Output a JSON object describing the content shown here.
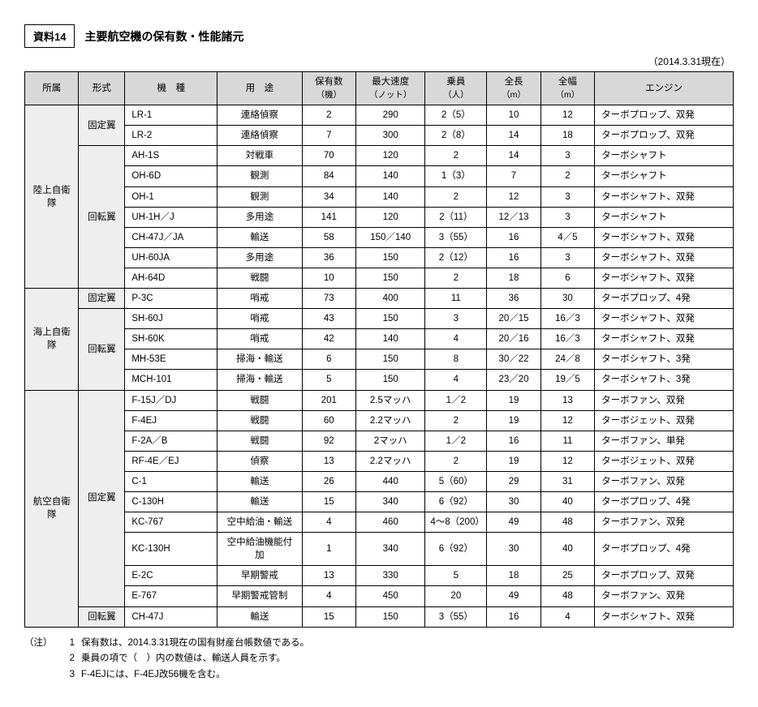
{
  "header": {
    "badge": "資料14",
    "title": "主要航空機の保有数・性能諸元",
    "asof": "（2014.3.31現在）"
  },
  "columns": {
    "org": "所属",
    "type": "形式",
    "model": "機　種",
    "use": "用　途",
    "count": "保有数",
    "count_sub": "（機）",
    "speed": "最大速度",
    "speed_sub": "（ノット）",
    "crew": "乗員",
    "crew_sub": "（人）",
    "length": "全長",
    "length_sub": "（m）",
    "width": "全幅",
    "width_sub": "（m）",
    "engine": "エンジン"
  },
  "orgs": {
    "ground": "陸上自衛隊",
    "sea": "海上自衛隊",
    "air": "航空自衛隊"
  },
  "types": {
    "fixed": "固定翼",
    "rotor": "回転翼"
  },
  "rows": {
    "r1": {
      "model": "LR-1",
      "use": "連絡偵察",
      "count": "2",
      "speed": "290",
      "crew": "2（5）",
      "len": "10",
      "wid": "12",
      "eng": "ターボプロップ、双発"
    },
    "r2": {
      "model": "LR-2",
      "use": "連絡偵察",
      "count": "7",
      "speed": "300",
      "crew": "2（8）",
      "len": "14",
      "wid": "18",
      "eng": "ターボプロップ、双発"
    },
    "r3": {
      "model": "AH-1S",
      "use": "対戦車",
      "count": "70",
      "speed": "120",
      "crew": "2",
      "len": "14",
      "wid": "3",
      "eng": "ターボシャフト"
    },
    "r4": {
      "model": "OH-6D",
      "use": "観測",
      "count": "84",
      "speed": "140",
      "crew": "1（3）",
      "len": "7",
      "wid": "2",
      "eng": "ターボシャフト"
    },
    "r5": {
      "model": "OH-1",
      "use": "観測",
      "count": "34",
      "speed": "140",
      "crew": "2",
      "len": "12",
      "wid": "3",
      "eng": "ターボシャフト、双発"
    },
    "r6": {
      "model": "UH-1H／J",
      "use": "多用途",
      "count": "141",
      "speed": "120",
      "crew": "2（11）",
      "len": "12／13",
      "wid": "3",
      "eng": "ターボシャフト"
    },
    "r7": {
      "model": "CH-47J／JA",
      "use": "輸送",
      "count": "58",
      "speed": "150／140",
      "crew": "3（55）",
      "len": "16",
      "wid": "4／5",
      "eng": "ターボシャフト、双発"
    },
    "r8": {
      "model": "UH-60JA",
      "use": "多用途",
      "count": "36",
      "speed": "150",
      "crew": "2（12）",
      "len": "16",
      "wid": "3",
      "eng": "ターボシャフト、双発"
    },
    "r9": {
      "model": "AH-64D",
      "use": "戦闘",
      "count": "10",
      "speed": "150",
      "crew": "2",
      "len": "18",
      "wid": "6",
      "eng": "ターボシャフト、双発"
    },
    "r10": {
      "model": "P-3C",
      "use": "哨戒",
      "count": "73",
      "speed": "400",
      "crew": "11",
      "len": "36",
      "wid": "30",
      "eng": "ターボプロップ、4発"
    },
    "r11": {
      "model": "SH-60J",
      "use": "哨戒",
      "count": "43",
      "speed": "150",
      "crew": "3",
      "len": "20／15",
      "wid": "16／3",
      "eng": "ターボシャフト、双発"
    },
    "r12": {
      "model": "SH-60K",
      "use": "哨戒",
      "count": "42",
      "speed": "140",
      "crew": "4",
      "len": "20／16",
      "wid": "16／3",
      "eng": "ターボシャフト、双発"
    },
    "r13": {
      "model": "MH-53E",
      "use": "掃海・輸送",
      "count": "6",
      "speed": "150",
      "crew": "8",
      "len": "30／22",
      "wid": "24／8",
      "eng": "ターボシャフト、3発"
    },
    "r14": {
      "model": "MCH-101",
      "use": "掃海・輸送",
      "count": "5",
      "speed": "150",
      "crew": "4",
      "len": "23／20",
      "wid": "19／5",
      "eng": "ターボシャフト、3発"
    },
    "r15": {
      "model": "F-15J／DJ",
      "use": "戦闘",
      "count": "201",
      "speed": "2.5マッハ",
      "crew": "1／2",
      "len": "19",
      "wid": "13",
      "eng": "ターボファン、双発"
    },
    "r16": {
      "model": "F-4EJ",
      "use": "戦闘",
      "count": "60",
      "speed": "2.2マッハ",
      "crew": "2",
      "len": "19",
      "wid": "12",
      "eng": "ターボジェット、双発"
    },
    "r17": {
      "model": "F-2A／B",
      "use": "戦闘",
      "count": "92",
      "speed": "2マッハ",
      "crew": "1／2",
      "len": "16",
      "wid": "11",
      "eng": "ターボファン、単発"
    },
    "r18": {
      "model": "RF-4E／EJ",
      "use": "偵察",
      "count": "13",
      "speed": "2.2マッハ",
      "crew": "2",
      "len": "19",
      "wid": "12",
      "eng": "ターボジェット、双発"
    },
    "r19": {
      "model": "C-1",
      "use": "輸送",
      "count": "26",
      "speed": "440",
      "crew": "5（60）",
      "len": "29",
      "wid": "31",
      "eng": "ターボファン、双発"
    },
    "r20": {
      "model": "C-130H",
      "use": "輸送",
      "count": "15",
      "speed": "340",
      "crew": "6（92）",
      "len": "30",
      "wid": "40",
      "eng": "ターボプロップ、4発"
    },
    "r21": {
      "model": "KC-767",
      "use": "空中給油・輸送",
      "count": "4",
      "speed": "460",
      "crew": "4～8（200）",
      "len": "49",
      "wid": "48",
      "eng": "ターボファン、双発"
    },
    "r22": {
      "model": "KC-130H",
      "use": "空中給油機能付加",
      "count": "1",
      "speed": "340",
      "crew": "6（92）",
      "len": "30",
      "wid": "40",
      "eng": "ターボプロップ、4発"
    },
    "r23": {
      "model": "E-2C",
      "use": "早期警戒",
      "count": "13",
      "speed": "330",
      "crew": "5",
      "len": "18",
      "wid": "25",
      "eng": "ターボプロップ、双発"
    },
    "r24": {
      "model": "E-767",
      "use": "早期警戒管制",
      "count": "4",
      "speed": "450",
      "crew": "20",
      "len": "49",
      "wid": "48",
      "eng": "ターボファン、双発"
    },
    "r25": {
      "model": "CH-47J",
      "use": "輸送",
      "count": "15",
      "speed": "150",
      "crew": "3（55）",
      "len": "16",
      "wid": "4",
      "eng": "ターボシャフト、双発"
    }
  },
  "notes": {
    "label": "（注）",
    "n1num": "1",
    "n1": "保有数は、2014.3.31現在の国有財産台帳数値である。",
    "n2num": "2",
    "n2": "乗員の項で（　）内の数値は、輸送人員を示す。",
    "n3num": "3",
    "n3": "F-4EJには、F-4EJ改56機を含む。"
  }
}
